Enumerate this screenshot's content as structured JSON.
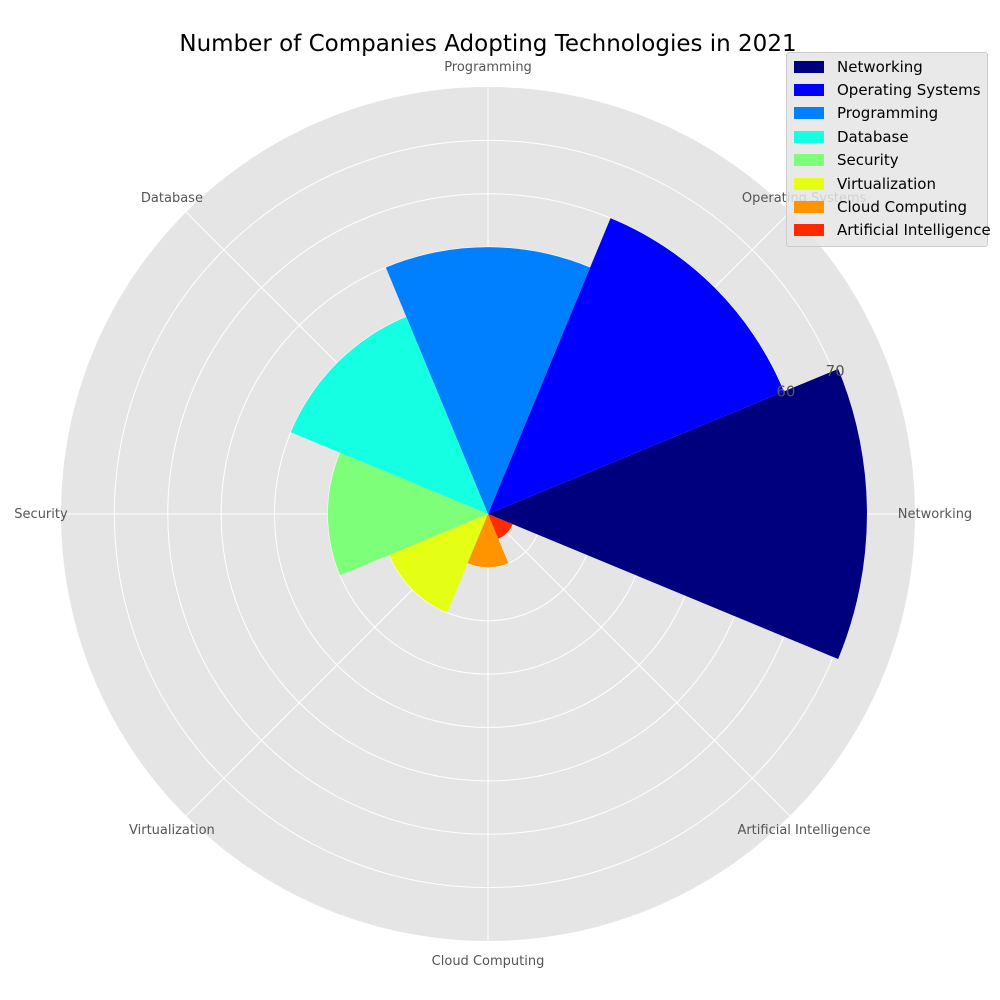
{
  "chart_data": {
    "type": "bar",
    "subtype": "polar",
    "title": "Number of Companies Adopting Technologies in 2021",
    "categories": [
      "Networking",
      "Operating Systems",
      "Programming",
      "Database",
      "Security",
      "Virtualization",
      "Cloud Computing",
      "Artificial Intelligence"
    ],
    "values": [
      71,
      60,
      50,
      40,
      30,
      20,
      10,
      5
    ],
    "colors": [
      "#00007f",
      "#0000ff",
      "#0080ff",
      "#15ffe2",
      "#7dff7a",
      "#e4ff13",
      "#ff9400",
      "#ff2a00"
    ],
    "radial_ticks": [
      10,
      20,
      30,
      40,
      50,
      60,
      70
    ],
    "radial_tick_labels_shown": [
      "60",
      "70"
    ],
    "rlim": [
      0,
      80
    ],
    "grid": true,
    "legend": {
      "placement": "top-right",
      "entries": [
        "Networking",
        "Operating Systems",
        "Programming",
        "Database",
        "Security",
        "Virtualization",
        "Cloud Computing",
        "Artificial Intelligence"
      ]
    },
    "background_color": "#e5e5e5"
  }
}
